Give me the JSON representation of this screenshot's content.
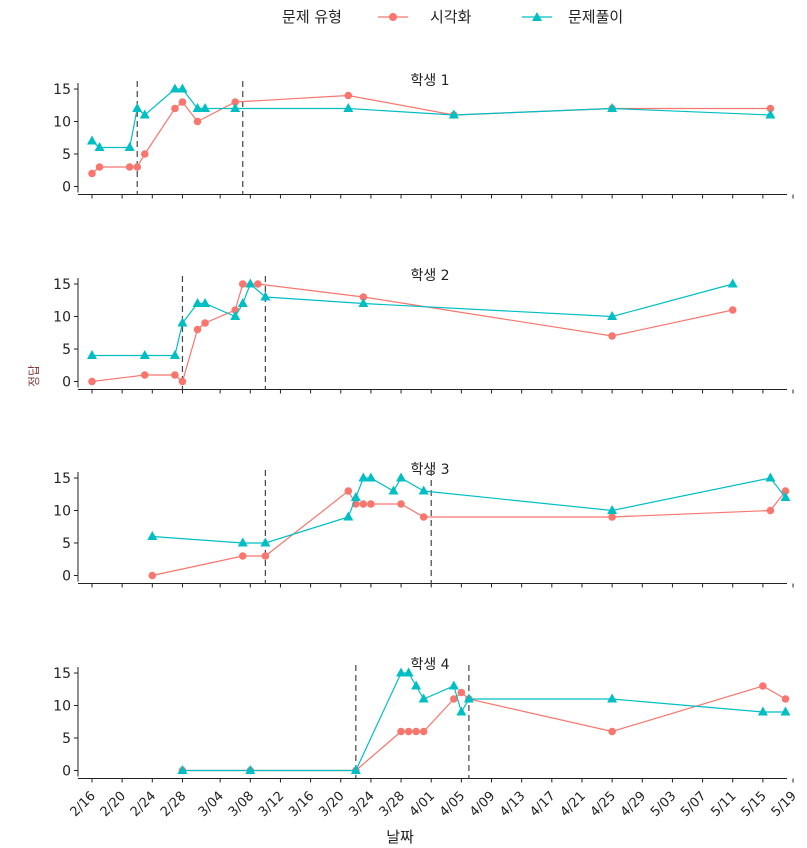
{
  "legend": {
    "title": "문제 유형",
    "items": [
      {
        "label": "시각화",
        "color": "#F8766D",
        "shape": "circle"
      },
      {
        "label": "문제풀이",
        "color": "#00BFC4",
        "shape": "triangle"
      }
    ]
  },
  "chart_data": {
    "type": "line",
    "xlabel": "날짜",
    "ylabel": "정답",
    "x_ticks": [
      "2/16",
      "2/20",
      "2/24",
      "2/28",
      "3/04",
      "3/08",
      "3/12",
      "3/16",
      "3/20",
      "3/24",
      "3/28",
      "4/01",
      "4/05",
      "4/09",
      "4/13",
      "4/17",
      "4/21",
      "4/25",
      "4/29",
      "5/03",
      "5/07",
      "5/11",
      "5/15",
      "5/19"
    ],
    "y_ticks": [
      0,
      5,
      10,
      15
    ],
    "ylim": [
      0,
      15
    ],
    "panels": [
      {
        "title": "학생 1",
        "phase_lines": [
          "2/22",
          "3/07"
        ],
        "series": [
          {
            "name": "시각화",
            "x": [
              "2/16",
              "2/17",
              "2/21",
              "2/22",
              "2/23",
              "2/27",
              "2/28",
              "3/01",
              "3/06",
              "3/21",
              "4/04",
              "4/25",
              "5/16"
            ],
            "y": [
              2,
              3,
              3,
              3,
              5,
              12,
              13,
              10,
              13,
              14,
              11,
              12,
              12
            ]
          },
          {
            "name": "문제풀이",
            "x": [
              "2/16",
              "2/17",
              "2/21",
              "2/22",
              "2/23",
              "2/27",
              "2/28",
              "3/01",
              "3/02",
              "3/06",
              "3/21",
              "4/04",
              "4/25",
              "5/16"
            ],
            "y": [
              7,
              6,
              6,
              12,
              11,
              15,
              15,
              12,
              12,
              12,
              12,
              11,
              12,
              11
            ]
          }
        ]
      },
      {
        "title": "학생 2",
        "phase_lines": [
          "2/28",
          "3/10"
        ],
        "series": [
          {
            "name": "시각화",
            "x": [
              "2/16",
              "2/23",
              "2/27",
              "2/28",
              "3/01",
              "3/02",
              "3/06",
              "3/07",
              "3/09",
              "3/23",
              "4/25",
              "5/11"
            ],
            "y": [
              0,
              1,
              1,
              0,
              8,
              9,
              11,
              15,
              15,
              13,
              7,
              11
            ]
          },
          {
            "name": "문제풀이",
            "x": [
              "2/16",
              "2/23",
              "2/27",
              "2/28",
              "3/01",
              "3/02",
              "3/06",
              "3/07",
              "3/08",
              "3/10",
              "3/23",
              "4/25",
              "5/11"
            ],
            "y": [
              4,
              4,
              4,
              9,
              12,
              12,
              10,
              12,
              15,
              13,
              12,
              10,
              15
            ]
          }
        ]
      },
      {
        "title": "학생 3",
        "phase_lines": [
          "3/10",
          "4/01"
        ],
        "series": [
          {
            "name": "시각화",
            "x": [
              "2/24",
              "3/07",
              "3/10",
              "3/21",
              "3/22",
              "3/23",
              "3/24",
              "3/28",
              "3/31",
              "4/25",
              "5/16",
              "5/18"
            ],
            "y": [
              0,
              3,
              3,
              13,
              11,
              11,
              11,
              11,
              9,
              9,
              10,
              13
            ]
          },
          {
            "name": "문제풀이",
            "x": [
              "2/24",
              "3/07",
              "3/10",
              "3/21",
              "3/22",
              "3/23",
              "3/24",
              "3/27",
              "3/28",
              "3/31",
              "4/25",
              "5/16",
              "5/18"
            ],
            "y": [
              6,
              5,
              5,
              9,
              12,
              15,
              15,
              13,
              15,
              13,
              10,
              15,
              12
            ]
          }
        ]
      },
      {
        "title": "학생 4",
        "phase_lines": [
          "3/22",
          "4/06"
        ],
        "series": [
          {
            "name": "시각화",
            "x": [
              "2/28",
              "3/08",
              "3/22",
              "3/28",
              "3/29",
              "3/30",
              "3/31",
              "4/04",
              "4/05",
              "4/06",
              "4/25",
              "5/15",
              "5/18"
            ],
            "y": [
              0,
              0,
              0,
              6,
              6,
              6,
              6,
              11,
              12,
              11,
              6,
              13,
              11
            ]
          },
          {
            "name": "문제풀이",
            "x": [
              "2/28",
              "3/08",
              "3/22",
              "3/28",
              "3/29",
              "3/30",
              "3/31",
              "4/04",
              "4/05",
              "4/06",
              "4/25",
              "5/15",
              "5/18"
            ],
            "y": [
              0,
              0,
              0,
              15,
              15,
              13,
              11,
              13,
              9,
              11,
              11,
              9,
              9
            ]
          }
        ]
      }
    ]
  }
}
